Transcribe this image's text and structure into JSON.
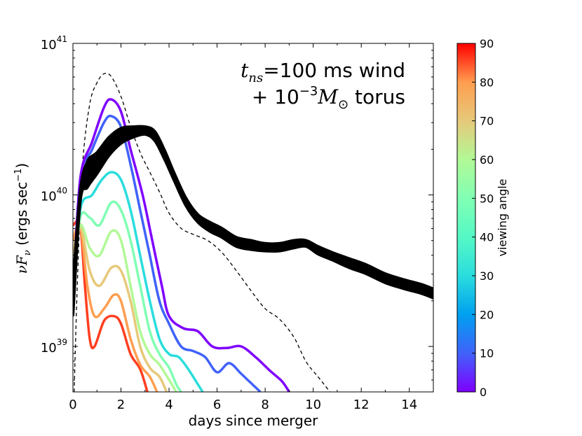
{
  "chart_data": {
    "type": "line",
    "xlabel": "days since merger",
    "ylabel_main": "νF",
    "ylabel_sub": "ν",
    "ylabel_unit_pre": " (ergs sec",
    "ylabel_unit_exp": "−1",
    "ylabel_unit_post": ")",
    "xlim": [
      0,
      15
    ],
    "ylim_log10": [
      38.7,
      41.0
    ],
    "x_ticks": [
      "0",
      "2",
      "4",
      "6",
      "8",
      "10",
      "12",
      "14"
    ],
    "x_tick_values": [
      0,
      2,
      4,
      6,
      8,
      10,
      12,
      14
    ],
    "y_ticks": [
      {
        "value": 39,
        "base": "10",
        "exp": "39"
      },
      {
        "value": 40,
        "base": "10",
        "exp": "40"
      },
      {
        "value": 41,
        "base": "10",
        "exp": "41"
      }
    ],
    "annotation": {
      "line1_var": "t",
      "line1_sub": "ns",
      "line1_eq": "=100",
      "line1_text": " ms wind",
      "line2_pre": "+ ",
      "line2_base": "10",
      "line2_exp": "−3",
      "line2_var": "M",
      "line2_sub": "⊙",
      "line2_text": " torus"
    },
    "colorbar": {
      "label": "viewing angle",
      "range": [
        0,
        90
      ],
      "ticks": [
        "0",
        "10",
        "20",
        "30",
        "40",
        "50",
        "60",
        "70",
        "80",
        "90"
      ],
      "tick_values": [
        0,
        10,
        20,
        30,
        40,
        50,
        60,
        70,
        80,
        90
      ]
    },
    "colored_series": [
      {
        "name": "0",
        "color": "#7f00ff",
        "points": [
          [
            0,
            39.3
          ],
          [
            0.3,
            40.1
          ],
          [
            0.8,
            40.35
          ],
          [
            1.3,
            40.58
          ],
          [
            1.6,
            40.63
          ],
          [
            2.0,
            40.55
          ],
          [
            2.4,
            40.3
          ],
          [
            2.9,
            40.0
          ],
          [
            3.3,
            39.7
          ],
          [
            3.7,
            39.4
          ],
          [
            4.0,
            39.2
          ],
          [
            4.6,
            39.12
          ],
          [
            5.2,
            39.1
          ],
          [
            5.8,
            39.0
          ],
          [
            6.4,
            38.99
          ],
          [
            7.0,
            39.0
          ],
          [
            7.6,
            38.93
          ],
          [
            8.2,
            38.84
          ],
          [
            8.7,
            38.77
          ],
          [
            9.0,
            38.7
          ]
        ]
      },
      {
        "name": "10",
        "color": "#4062fa",
        "points": [
          [
            0,
            39.3
          ],
          [
            0.3,
            40.1
          ],
          [
            0.8,
            40.3
          ],
          [
            1.3,
            40.48
          ],
          [
            1.6,
            40.52
          ],
          [
            2.0,
            40.45
          ],
          [
            2.4,
            40.2
          ],
          [
            2.8,
            39.9
          ],
          [
            3.2,
            39.6
          ],
          [
            3.6,
            39.3
          ],
          [
            4.0,
            39.15
          ],
          [
            4.5,
            39.0
          ],
          [
            5.0,
            38.97
          ],
          [
            5.5,
            38.93
          ],
          [
            6.0,
            38.83
          ],
          [
            6.5,
            38.89
          ],
          [
            7.0,
            38.82
          ],
          [
            7.4,
            38.76
          ],
          [
            7.8,
            38.7
          ]
        ]
      },
      {
        "name": "30",
        "color": "#2adddd",
        "points": [
          [
            0,
            39.3
          ],
          [
            0.3,
            39.9
          ],
          [
            0.8,
            40.0
          ],
          [
            1.2,
            40.1
          ],
          [
            1.6,
            40.15
          ],
          [
            2.0,
            40.1
          ],
          [
            2.4,
            39.9
          ],
          [
            2.8,
            39.6
          ],
          [
            3.2,
            39.3
          ],
          [
            3.6,
            39.05
          ],
          [
            4.0,
            38.95
          ],
          [
            4.4,
            38.93
          ],
          [
            4.8,
            38.85
          ],
          [
            5.2,
            38.75
          ],
          [
            5.4,
            38.7
          ]
        ]
      },
      {
        "name": "50",
        "color": "#80ffb4",
        "points": [
          [
            0,
            39.4
          ],
          [
            0.3,
            39.85
          ],
          [
            0.7,
            39.85
          ],
          [
            1.1,
            39.8
          ],
          [
            1.6,
            39.95
          ],
          [
            2.0,
            39.9
          ],
          [
            2.4,
            39.7
          ],
          [
            2.8,
            39.4
          ],
          [
            3.2,
            39.1
          ],
          [
            3.6,
            38.95
          ],
          [
            4.0,
            38.86
          ],
          [
            4.3,
            38.75
          ],
          [
            4.5,
            38.7
          ]
        ]
      },
      {
        "name": "60",
        "color": "#b1f996",
        "points": [
          [
            0,
            39.5
          ],
          [
            0.3,
            39.8
          ],
          [
            0.7,
            39.65
          ],
          [
            1.1,
            39.6
          ],
          [
            1.6,
            39.76
          ],
          [
            2.0,
            39.7
          ],
          [
            2.4,
            39.4
          ],
          [
            2.8,
            39.1
          ],
          [
            3.2,
            38.95
          ],
          [
            3.6,
            38.88
          ],
          [
            4.0,
            38.78
          ],
          [
            4.3,
            38.7
          ]
        ]
      },
      {
        "name": "70",
        "color": "#e6c97a",
        "points": [
          [
            0,
            39.6
          ],
          [
            0.3,
            39.8
          ],
          [
            0.7,
            39.5
          ],
          [
            1.1,
            39.4
          ],
          [
            1.6,
            39.52
          ],
          [
            2.0,
            39.5
          ],
          [
            2.4,
            39.3
          ],
          [
            2.8,
            39.0
          ],
          [
            3.2,
            38.86
          ],
          [
            3.6,
            38.8
          ],
          [
            3.9,
            38.7
          ]
        ]
      },
      {
        "name": "80",
        "color": "#ff9e50",
        "points": [
          [
            0,
            39.7
          ],
          [
            0.3,
            39.8
          ],
          [
            0.6,
            39.4
          ],
          [
            0.9,
            39.2
          ],
          [
            1.3,
            39.25
          ],
          [
            1.7,
            39.34
          ],
          [
            2.0,
            39.3
          ],
          [
            2.4,
            39.05
          ],
          [
            2.8,
            38.88
          ],
          [
            3.2,
            38.8
          ],
          [
            3.5,
            38.7
          ]
        ]
      },
      {
        "name": "90",
        "color": "#ff3f20",
        "points": [
          [
            0,
            39.8
          ],
          [
            0.3,
            39.8
          ],
          [
            0.5,
            39.4
          ],
          [
            0.7,
            39.05
          ],
          [
            0.9,
            39.0
          ],
          [
            1.3,
            39.17
          ],
          [
            1.7,
            39.2
          ],
          [
            2.0,
            39.15
          ],
          [
            2.4,
            38.95
          ],
          [
            2.8,
            38.85
          ],
          [
            3.1,
            38.7
          ]
        ]
      }
    ],
    "black_series": {
      "name": "wind envelope",
      "color": "#000000",
      "upper": [
        [
          0,
          39.4
        ],
        [
          0.3,
          40.02
        ],
        [
          0.6,
          40.22
        ],
        [
          1.0,
          40.28
        ],
        [
          1.5,
          40.38
        ],
        [
          2.0,
          40.44
        ],
        [
          2.5,
          40.45
        ],
        [
          3.0,
          40.45
        ],
        [
          3.4,
          40.42
        ],
        [
          3.8,
          40.3
        ],
        [
          4.2,
          40.15
        ],
        [
          4.7,
          39.98
        ],
        [
          5.2,
          39.87
        ],
        [
          5.7,
          39.82
        ],
        [
          6.2,
          39.78
        ],
        [
          6.8,
          39.72
        ],
        [
          7.4,
          39.7
        ],
        [
          8.0,
          39.68
        ],
        [
          8.6,
          39.68
        ],
        [
          9.2,
          39.7
        ],
        [
          9.7,
          39.7
        ],
        [
          10.2,
          39.66
        ],
        [
          10.8,
          39.62
        ],
        [
          11.5,
          39.58
        ],
        [
          12.2,
          39.54
        ],
        [
          13.0,
          39.48
        ],
        [
          13.8,
          39.44
        ],
        [
          14.5,
          39.41
        ],
        [
          15.0,
          39.38
        ]
      ]
    },
    "black_lower": [
      [
        0,
        39.2
      ],
      [
        0.3,
        39.95
      ],
      [
        0.6,
        40.05
      ],
      [
        1.0,
        40.14
      ],
      [
        1.5,
        40.26
      ],
      [
        2.0,
        40.34
      ],
      [
        2.5,
        40.38
      ],
      [
        3.0,
        40.4
      ],
      [
        3.4,
        40.36
      ],
      [
        3.8,
        40.24
      ],
      [
        4.2,
        40.1
      ],
      [
        4.7,
        39.93
      ],
      [
        5.2,
        39.82
      ],
      [
        5.7,
        39.76
      ],
      [
        6.2,
        39.72
      ],
      [
        6.8,
        39.66
      ],
      [
        7.4,
        39.64
      ],
      [
        8.0,
        39.63
      ],
      [
        8.6,
        39.63
      ],
      [
        9.2,
        39.65
      ],
      [
        9.7,
        39.66
      ],
      [
        10.2,
        39.61
      ],
      [
        10.8,
        39.57
      ],
      [
        11.5,
        39.52
      ],
      [
        12.2,
        39.48
      ],
      [
        13.0,
        39.42
      ],
      [
        13.8,
        39.38
      ],
      [
        14.5,
        39.35
      ],
      [
        15.0,
        39.32
      ]
    ],
    "dashed_series": {
      "name": "dashed reference",
      "color": "#000000",
      "points": [
        [
          0.05,
          38.7
        ],
        [
          0.2,
          39.5
        ],
        [
          0.4,
          40.2
        ],
        [
          0.7,
          40.6
        ],
        [
          1.0,
          40.74
        ],
        [
          1.3,
          40.8
        ],
        [
          1.6,
          40.78
        ],
        [
          2.0,
          40.65
        ],
        [
          2.4,
          40.45
        ],
        [
          2.8,
          40.28
        ],
        [
          3.2,
          40.15
        ],
        [
          3.6,
          40.02
        ],
        [
          4.0,
          39.88
        ],
        [
          4.5,
          39.78
        ],
        [
          5.0,
          39.74
        ],
        [
          5.6,
          39.7
        ],
        [
          6.2,
          39.62
        ],
        [
          6.8,
          39.5
        ],
        [
          7.4,
          39.37
        ],
        [
          8.0,
          39.25
        ],
        [
          8.6,
          39.18
        ],
        [
          9.2,
          39.06
        ],
        [
          9.7,
          38.9
        ],
        [
          10.2,
          38.8
        ],
        [
          10.6,
          38.72
        ],
        [
          10.7,
          38.7
        ]
      ]
    }
  }
}
